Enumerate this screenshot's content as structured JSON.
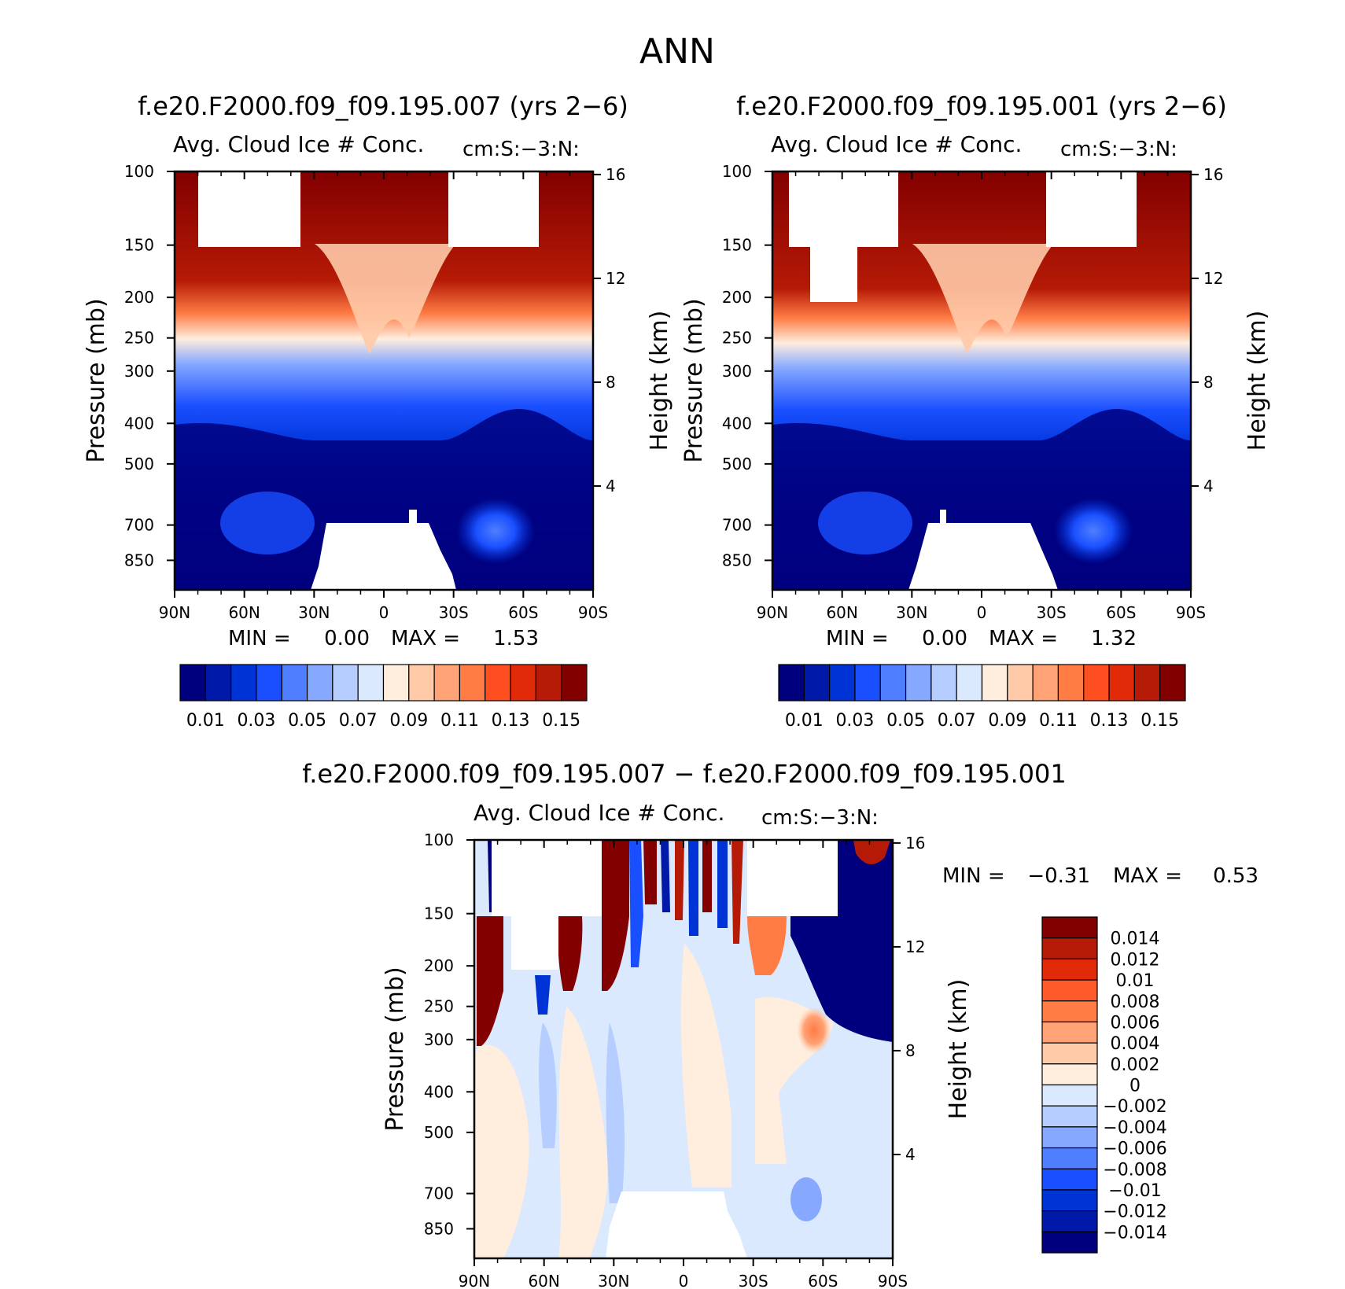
{
  "figure_title": "ANN",
  "chart_data": [
    {
      "type": "heatmap",
      "title": "f.e20.F2000.f09_f09.195.007 (yrs 2−6)",
      "subtitle_left": "Avg. Cloud Ice # Conc.",
      "subtitle_right": "cm:S:−3:N:",
      "ylabel": "Pressure (mb)",
      "ylabel_right": "Height (km)",
      "x_ticks": [
        "90N",
        "60N",
        "30N",
        "0",
        "30S",
        "60S",
        "90S"
      ],
      "xlim": [
        90,
        -90
      ],
      "y_ticks": [
        "100",
        "150",
        "200",
        "250",
        "300",
        "400",
        "500",
        "700",
        "850"
      ],
      "ylim": [
        1000,
        100
      ],
      "y_ticks_right": [
        "16",
        "12",
        "8",
        "4"
      ],
      "min_label": "MIN =",
      "min_value": "0.00",
      "max_label": "MAX =",
      "max_value": "1.53",
      "colorbar": {
        "orientation": "horizontal",
        "colors": [
          "#00007f",
          "#0019a8",
          "#0033d6",
          "#1a4fff",
          "#4f7fff",
          "#86a8ff",
          "#b6cdff",
          "#dbe9ff",
          "#ffeddd",
          "#ffcaa8",
          "#ffa275",
          "#ff7c45",
          "#ff4e1f",
          "#e02a08",
          "#b51a06",
          "#820000"
        ],
        "labels": [
          "0.01",
          "0.03",
          "0.05",
          "0.07",
          "0.09",
          "0.11",
          "0.13",
          "0.15"
        ]
      }
    },
    {
      "type": "heatmap",
      "title": "f.e20.F2000.f09_f09.195.001 (yrs 2−6)",
      "subtitle_left": "Avg. Cloud Ice # Conc.",
      "subtitle_right": "cm:S:−3:N:",
      "ylabel": "Pressure (mb)",
      "ylabel_right": "Height (km)",
      "x_ticks": [
        "90N",
        "60N",
        "30N",
        "0",
        "30S",
        "60S",
        "90S"
      ],
      "xlim": [
        90,
        -90
      ],
      "y_ticks": [
        "100",
        "150",
        "200",
        "250",
        "300",
        "400",
        "500",
        "700",
        "850"
      ],
      "ylim": [
        1000,
        100
      ],
      "y_ticks_right": [
        "16",
        "12",
        "8",
        "4"
      ],
      "min_label": "MIN =",
      "min_value": "0.00",
      "max_label": "MAX =",
      "max_value": "1.32",
      "colorbar": {
        "orientation": "horizontal",
        "colors": [
          "#00007f",
          "#0019a8",
          "#0033d6",
          "#1a4fff",
          "#4f7fff",
          "#86a8ff",
          "#b6cdff",
          "#dbe9ff",
          "#ffeddd",
          "#ffcaa8",
          "#ffa275",
          "#ff7c45",
          "#ff4e1f",
          "#e02a08",
          "#b51a06",
          "#820000"
        ],
        "labels": [
          "0.01",
          "0.03",
          "0.05",
          "0.07",
          "0.09",
          "0.11",
          "0.13",
          "0.15"
        ]
      }
    },
    {
      "type": "heatmap",
      "title": "f.e20.F2000.f09_f09.195.007 − f.e20.F2000.f09_f09.195.001",
      "subtitle_left": "Avg. Cloud Ice # Conc.",
      "subtitle_right": "cm:S:−3:N:",
      "ylabel": "Pressure (mb)",
      "ylabel_right": "Height (km)",
      "x_ticks": [
        "90N",
        "60N",
        "30N",
        "0",
        "30S",
        "60S",
        "90S"
      ],
      "xlim": [
        90,
        -90
      ],
      "y_ticks": [
        "100",
        "150",
        "200",
        "250",
        "300",
        "400",
        "500",
        "700",
        "850"
      ],
      "ylim": [
        1000,
        100
      ],
      "y_ticks_right": [
        "16",
        "12",
        "8",
        "4"
      ],
      "min_label": "MIN =",
      "min_value": "−0.31",
      "max_label": "MAX =",
      "max_value": "0.53",
      "colorbar": {
        "orientation": "vertical",
        "colors": [
          "#820000",
          "#b51a06",
          "#e02a08",
          "#ff5a2a",
          "#ff7c45",
          "#ffa275",
          "#ffcaa8",
          "#ffeddd",
          "#dbe9ff",
          "#b6cdff",
          "#86a8ff",
          "#4f7fff",
          "#1a4fff",
          "#0033d6",
          "#0019a8",
          "#00007f"
        ],
        "labels": [
          "0.014",
          "0.012",
          "0.01",
          "0.008",
          "0.006",
          "0.004",
          "0.002",
          "0",
          "−0.002",
          "−0.004",
          "−0.006",
          "−0.008",
          "−0.01",
          "−0.012",
          "−0.014"
        ]
      }
    }
  ]
}
